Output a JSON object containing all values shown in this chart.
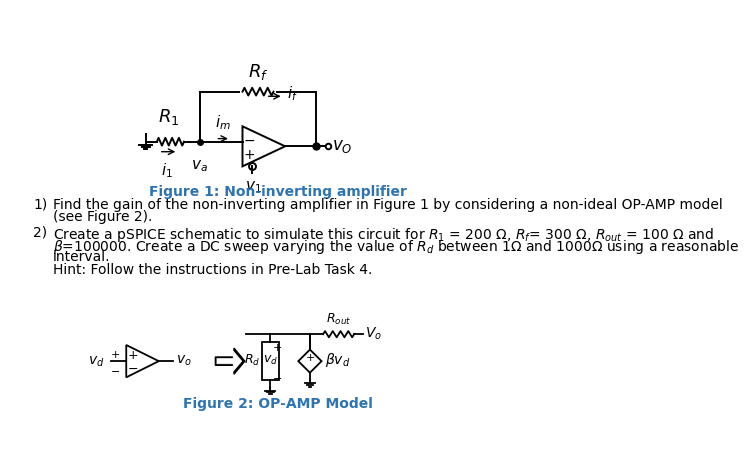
{
  "bg_color": "#ffffff",
  "fig1_caption": "Figure 1: Non-inverting amplifier",
  "fig2_caption": "Figure 2: OP-AMP Model",
  "text_color": "#000000",
  "caption_color": "#2E74B5",
  "fig_width": 6.93,
  "fig_height": 5.62,
  "hint": "Hint: Follow the instructions in Pre-Lab Task 4.",
  "line1a": "Find the gain of the non-inverting amplifier in Figure 1 by considering a non-ideal OP-AMP model",
  "line1b": "(see Figure 2).",
  "line2": "Create a pSPICE schematic to simulate this circuit for $R_1$ = 200 $\\Omega$, $R_f$= 300 $\\Omega$, $R_{out}$ = 100 $\\Omega$ and",
  "line3": "$\\beta$=100000. Create a DC sweep varying the value of $R_d$ between 1$\\Omega$ and 1000$\\Omega$ using a reasonable",
  "line4": "interval."
}
